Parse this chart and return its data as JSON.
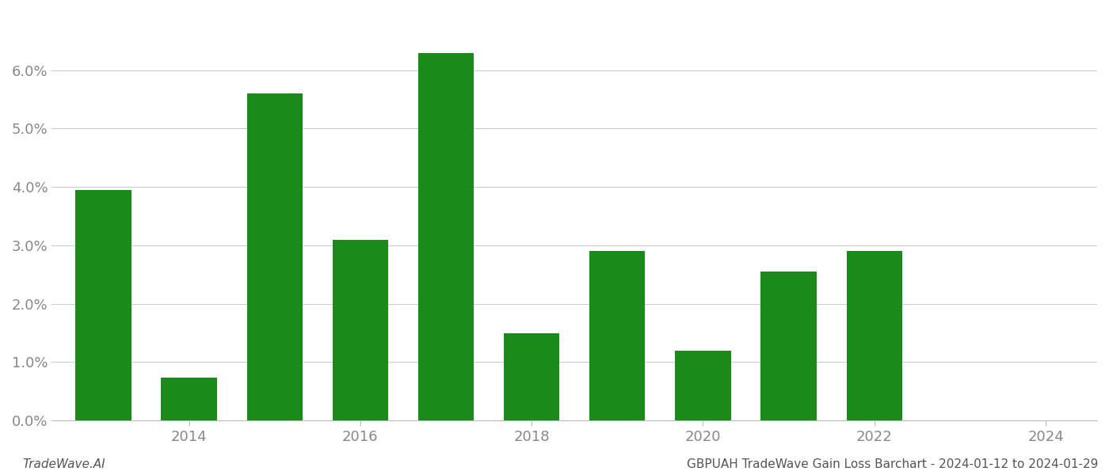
{
  "years": [
    2013,
    2014,
    2015,
    2016,
    2017,
    2018,
    2019,
    2020,
    2021,
    2022,
    2023
  ],
  "values": [
    0.0395,
    0.0073,
    0.056,
    0.031,
    0.063,
    0.015,
    0.029,
    0.012,
    0.0255,
    0.029,
    0.0
  ],
  "bar_color": "#1a8a1a",
  "background_color": "#ffffff",
  "ylabel_color": "#888888",
  "xlabel_color": "#888888",
  "grid_color": "#cccccc",
  "ylim": [
    0.0,
    0.07
  ],
  "yticks": [
    0.0,
    0.01,
    0.02,
    0.03,
    0.04,
    0.05,
    0.06
  ],
  "xtick_positions": [
    2014,
    2016,
    2018,
    2020,
    2022,
    2024
  ],
  "xtick_labels": [
    "2014",
    "2016",
    "2018",
    "2020",
    "2022",
    "2024"
  ],
  "xlim": [
    2012.4,
    2024.6
  ],
  "footer_left": "TradeWave.AI",
  "footer_right": "GBPUAH TradeWave Gain Loss Barchart - 2024-01-12 to 2024-01-29",
  "bar_width": 0.65
}
